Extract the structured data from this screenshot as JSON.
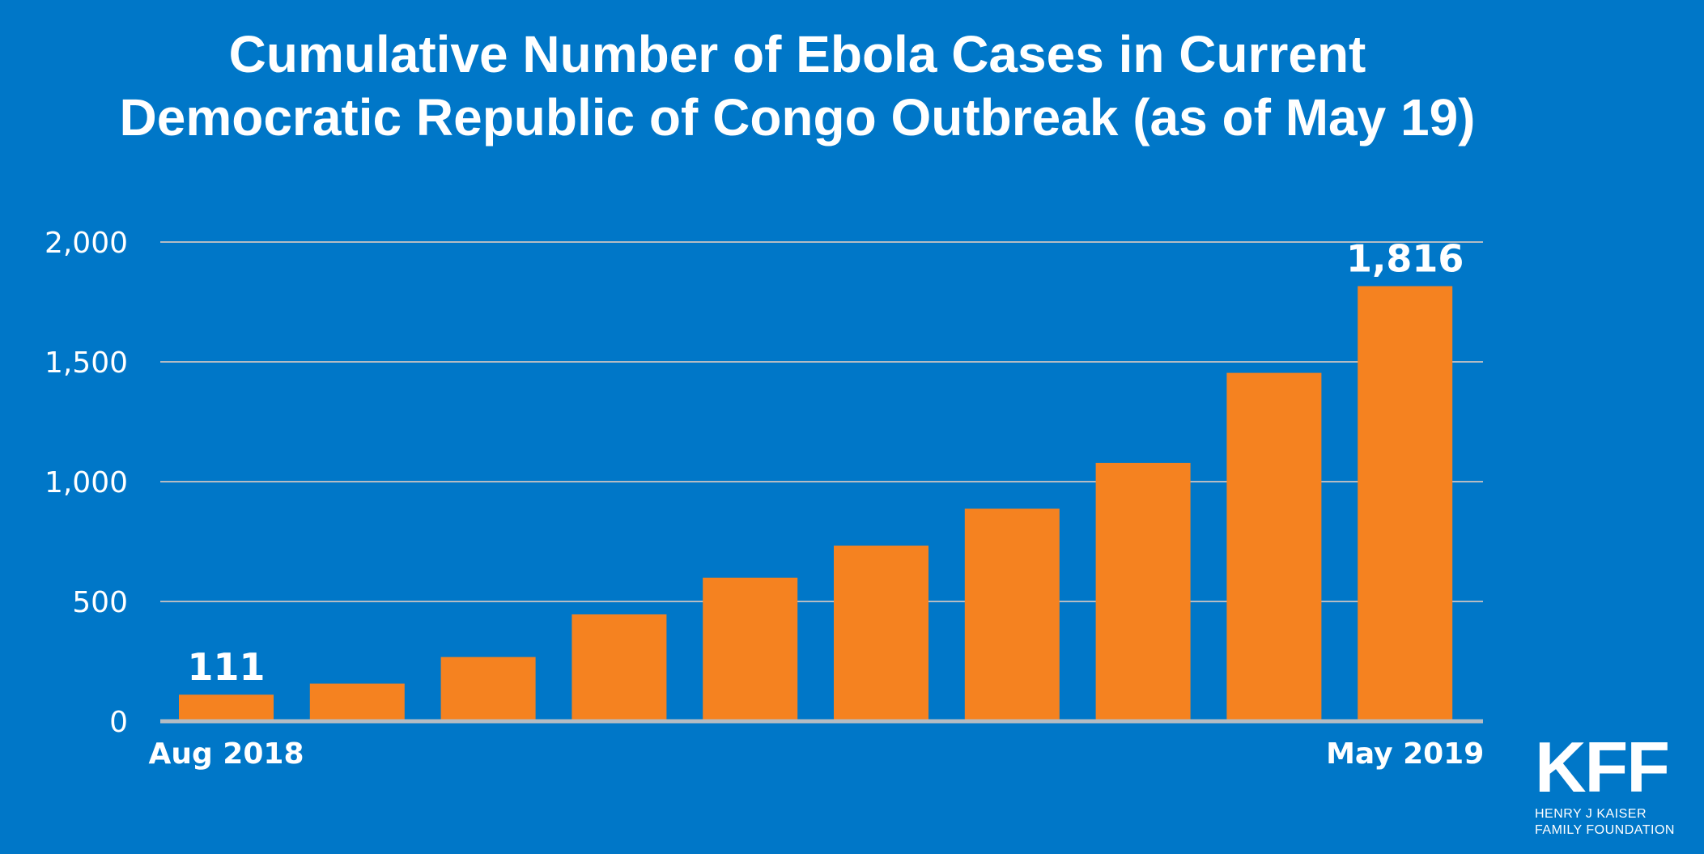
{
  "chart_data": {
    "type": "bar",
    "title_lines": [
      "Cumulative Number of Ebola Cases in Current",
      "Democratic Republic of Congo Outbreak (as of May 19)"
    ],
    "x_tick_labels": [
      "Aug 2018",
      "May 2019"
    ],
    "values": [
      111,
      157,
      268,
      446,
      599,
      733,
      887,
      1078,
      1454,
      1816
    ],
    "data_labels": [
      "111",
      "",
      "",
      "",
      "",
      "",
      "",
      "",
      "",
      "1,816"
    ],
    "ylim": [
      0,
      2000
    ],
    "y_ticks": [
      0,
      500,
      1000,
      1500,
      2000
    ],
    "y_tick_labels": [
      "0",
      "500",
      "1,000",
      "1,500",
      "2,000"
    ],
    "xlabel": "",
    "ylabel": "",
    "grid": true,
    "colors": {
      "background": "#0077c8",
      "bar": "#f58220",
      "grid": "#b4bcc4",
      "text": "#ffffff"
    }
  },
  "logo": {
    "mark": "KFF",
    "line1": "HENRY J KAISER",
    "line2": "FAMILY FOUNDATION"
  }
}
